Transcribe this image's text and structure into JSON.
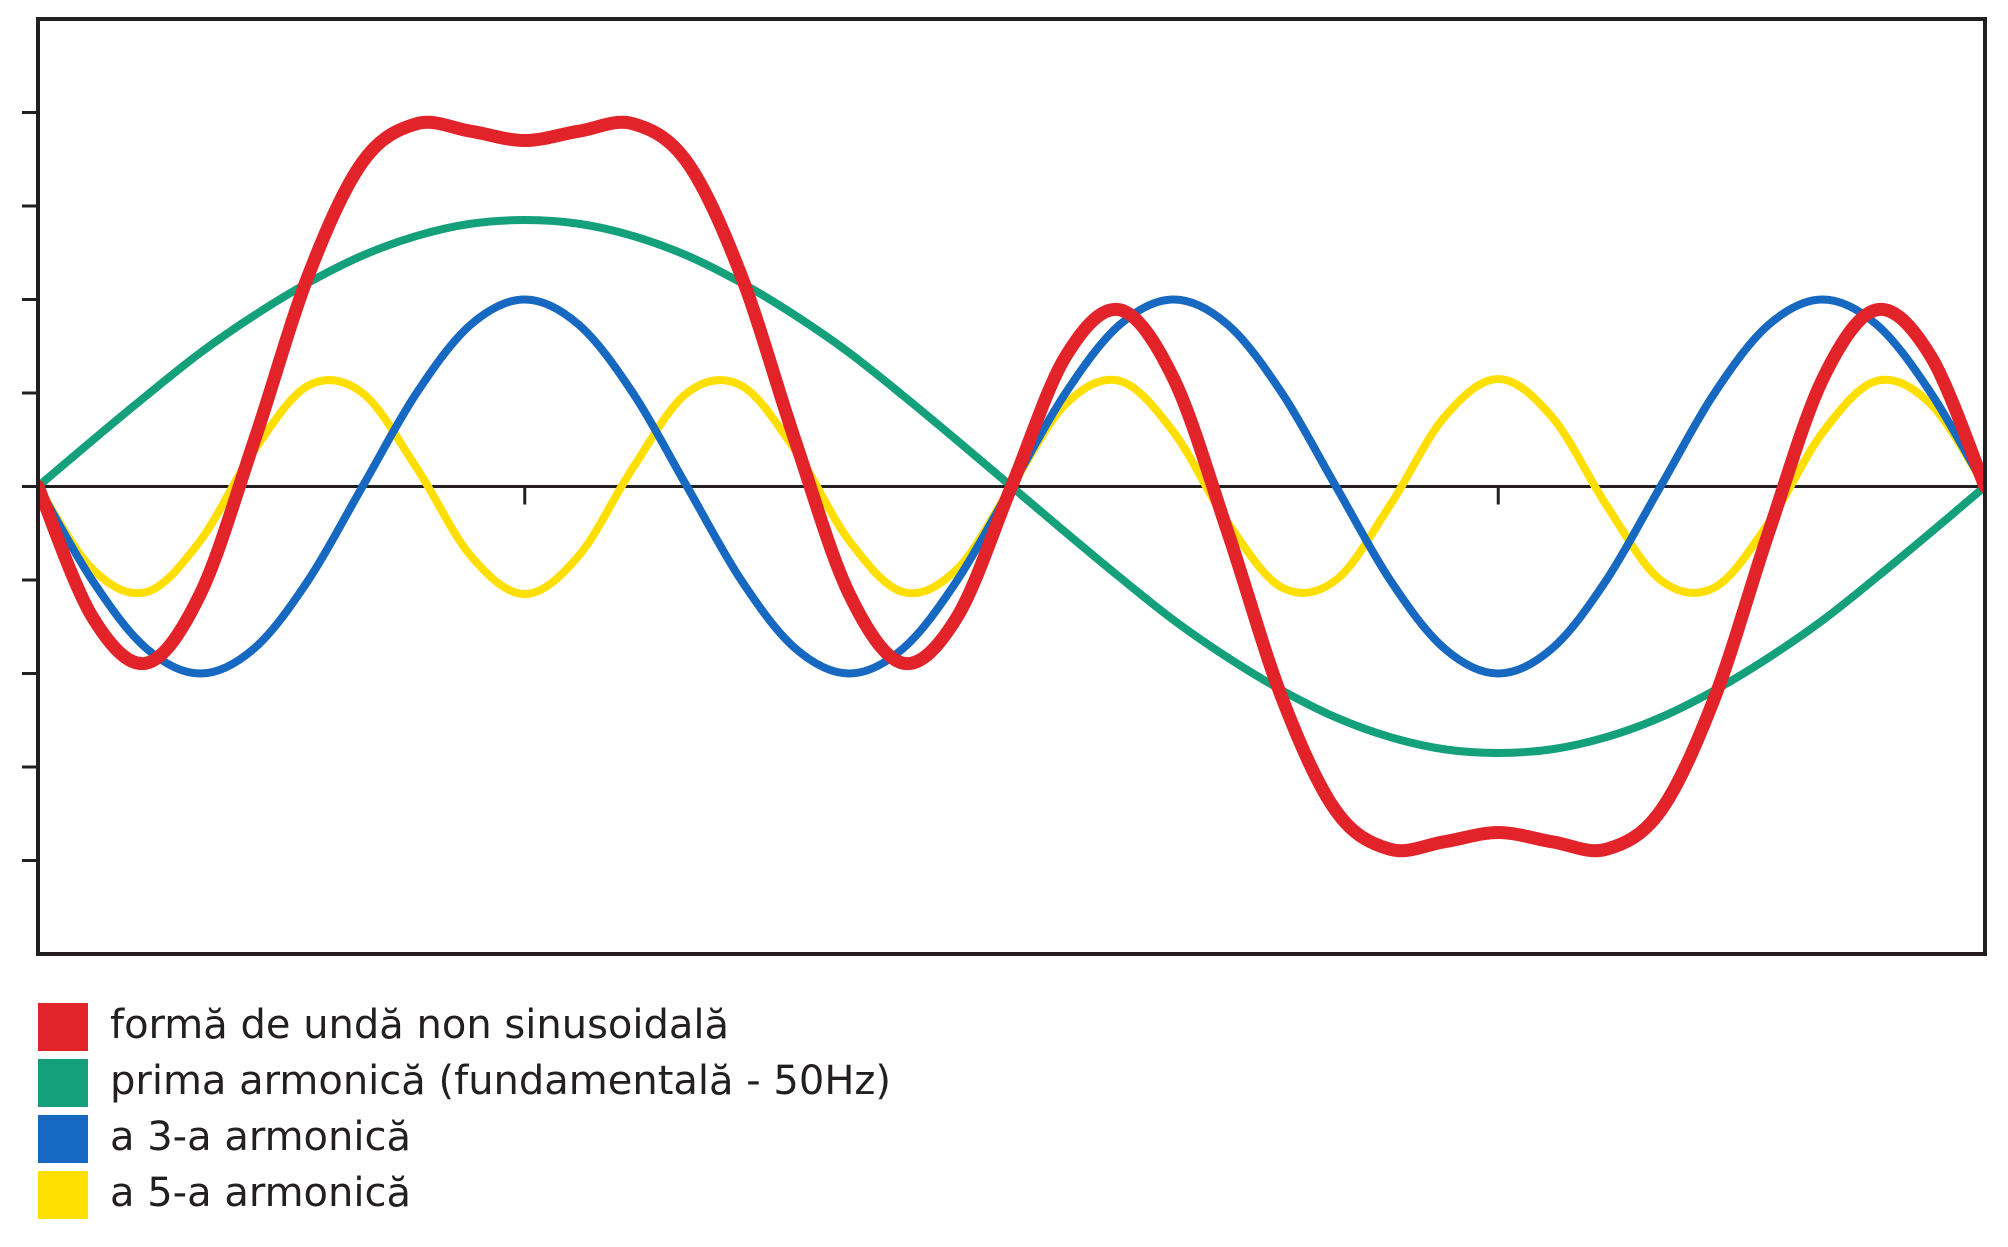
{
  "chart_data": {
    "type": "line",
    "x": [
      0,
      10,
      20,
      30,
      40,
      50,
      60,
      70,
      80,
      90,
      100,
      110,
      120,
      130,
      140,
      150,
      160,
      170,
      180,
      190,
      200,
      210,
      220,
      230,
      240,
      250,
      260,
      270,
      280,
      290,
      300,
      310,
      320,
      330,
      340,
      350,
      360
    ],
    "xlim": [
      0,
      360
    ],
    "xticks": [
      90,
      270
    ],
    "ylim": [
      -5,
      5
    ],
    "yticks": [
      -4,
      -3,
      -2,
      -1,
      0,
      1,
      2,
      3,
      4
    ],
    "series": [
      {
        "name": "formă de undă non sinusoidală",
        "color": "#e3232a",
        "values": [
          0,
          -1.39,
          -1.89,
          -1.15,
          0.49,
          2.26,
          3.47,
          3.88,
          3.8,
          3.7,
          3.8,
          3.88,
          3.47,
          2.26,
          0.49,
          -1.15,
          -1.89,
          -1.39,
          0,
          1.39,
          1.89,
          1.15,
          -0.49,
          -2.26,
          -3.47,
          -3.88,
          -3.8,
          -3.7,
          -3.8,
          -3.88,
          -3.47,
          -2.26,
          -0.49,
          1.15,
          1.89,
          1.39,
          0
        ]
      },
      {
        "name": "prima armonică (fundamentală - 50Hz)",
        "color": "#13a07a",
        "values": [
          0,
          0.49,
          0.97,
          1.43,
          1.83,
          2.18,
          2.47,
          2.68,
          2.81,
          2.85,
          2.81,
          2.68,
          2.47,
          2.18,
          1.83,
          1.43,
          0.97,
          0.49,
          0,
          -0.49,
          -0.97,
          -1.43,
          -1.83,
          -2.18,
          -2.47,
          -2.68,
          -2.81,
          -2.85,
          -2.81,
          -2.68,
          -2.47,
          -2.18,
          -1.83,
          -1.43,
          -0.97,
          -0.49,
          0
        ]
      },
      {
        "name": "a 3-a armonică",
        "color": "#1668c0",
        "values": [
          0,
          -1,
          -1.73,
          -2,
          -1.73,
          -1,
          0,
          1,
          1.73,
          2,
          1.73,
          1,
          0,
          -1,
          -1.73,
          -2,
          -1.73,
          -1,
          0,
          1,
          1.73,
          2,
          1.73,
          1,
          0,
          -1,
          -1.73,
          -2,
          -1.73,
          -1,
          0,
          1,
          1.73,
          2,
          1.73,
          1,
          0
        ]
      },
      {
        "name": "a 5-a armonică",
        "color": "#ffdf00",
        "values": [
          0,
          -0.88,
          -1.13,
          -0.58,
          0.39,
          1.08,
          1,
          0.2,
          -0.74,
          -1.15,
          -0.74,
          0.2,
          1,
          1.08,
          0.39,
          -0.58,
          -1.13,
          -0.88,
          0,
          0.88,
          1.13,
          0.58,
          -0.39,
          -1.08,
          -1,
          -0.2,
          0.74,
          1.15,
          0.74,
          -0.2,
          -1,
          -1.08,
          -0.39,
          0.58,
          1.13,
          0.88,
          0
        ]
      }
    ]
  }
}
